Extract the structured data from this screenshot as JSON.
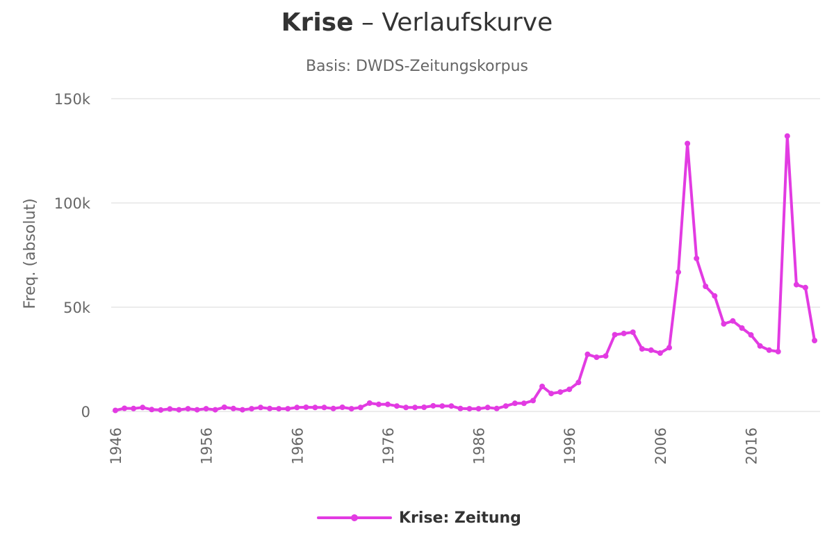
{
  "header": {
    "title_word": "Krise",
    "title_rest": " – Verlaufskurve",
    "subtitle": "Basis: DWDS-Zeitungskorpus"
  },
  "colors": {
    "series": "#e23be2",
    "grid": "#e6e6e6",
    "axis_text": "#666666",
    "title_text": "#333333"
  },
  "chart_data": {
    "type": "line",
    "ylabel": "Freq. (absolut)",
    "xlabel": "",
    "ylim": [
      0,
      150000
    ],
    "xlim": [
      1946,
      2023
    ],
    "y_ticks": [
      {
        "value": 0,
        "label": "0"
      },
      {
        "value": 50000,
        "label": "50k"
      },
      {
        "value": 100000,
        "label": "100k"
      },
      {
        "value": 150000,
        "label": "150k"
      }
    ],
    "x_ticks": [
      1946,
      1956,
      1966,
      1976,
      1986,
      1996,
      2006,
      2016
    ],
    "grid": true,
    "legend_position": "bottom-center",
    "series": [
      {
        "name": "Krise: Zeitung",
        "x": [
          1946,
          1947,
          1948,
          1949,
          1950,
          1951,
          1952,
          1953,
          1954,
          1955,
          1956,
          1957,
          1958,
          1959,
          1960,
          1961,
          1962,
          1963,
          1964,
          1965,
          1966,
          1967,
          1968,
          1969,
          1970,
          1971,
          1972,
          1973,
          1974,
          1975,
          1976,
          1977,
          1978,
          1979,
          1980,
          1981,
          1982,
          1983,
          1984,
          1985,
          1986,
          1987,
          1988,
          1989,
          1990,
          1991,
          1992,
          1993,
          1994,
          1995,
          1996,
          1997,
          1998,
          1999,
          2000,
          2001,
          2002,
          2003,
          2004,
          2005,
          2006,
          2007,
          2008,
          2009,
          2010,
          2011,
          2012,
          2013,
          2014,
          2015,
          2016,
          2017,
          2018,
          2019,
          2020,
          2021,
          2022,
          2023
        ],
        "values": [
          500,
          1500,
          1400,
          1900,
          900,
          700,
          1200,
          800,
          1300,
          800,
          1300,
          800,
          2000,
          1400,
          800,
          1300,
          1900,
          1400,
          1300,
          1300,
          1900,
          2000,
          1900,
          1900,
          1400,
          2000,
          1300,
          1900,
          4000,
          3400,
          3400,
          2600,
          1900,
          1900,
          2000,
          2700,
          2600,
          2600,
          1400,
          1300,
          1300,
          1900,
          1400,
          2600,
          3900,
          3900,
          5200,
          12000,
          8600,
          9300,
          10600,
          13900,
          27400,
          26000,
          26600,
          36800,
          37400,
          38000,
          30000,
          29400,
          28000,
          30600,
          66800,
          128500,
          73400,
          60000,
          55400,
          42000,
          43400,
          40000,
          36700,
          31400,
          29400,
          28700,
          132100,
          60800,
          59400,
          34000
        ]
      }
    ]
  }
}
